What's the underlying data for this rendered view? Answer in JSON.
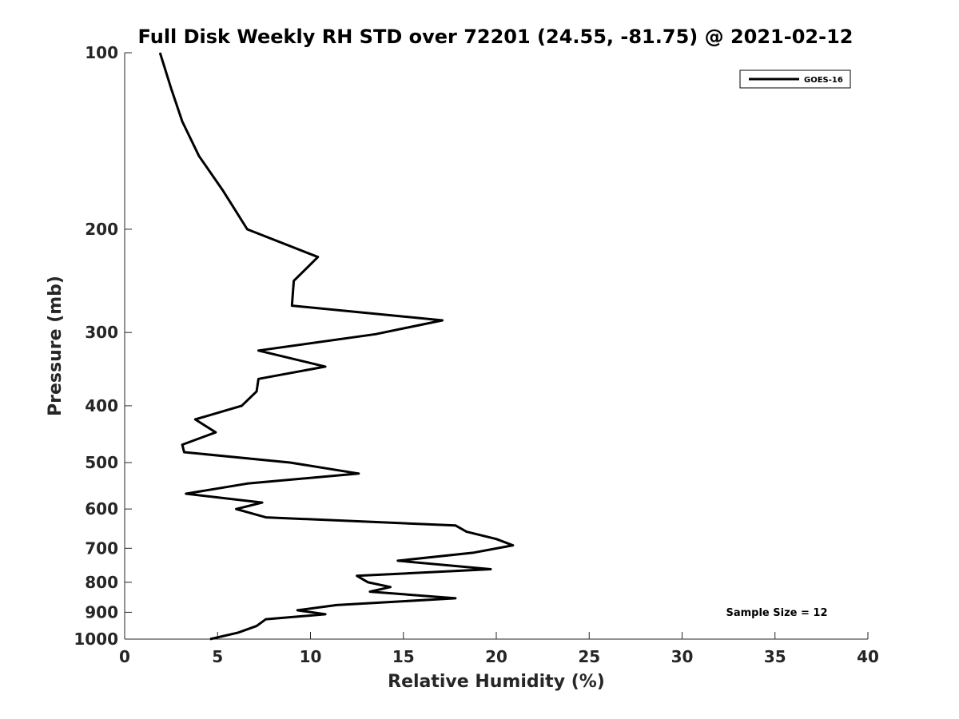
{
  "chart_data": {
    "type": "line",
    "title": "Full Disk Weekly RH STD over 72201 (24.55, -81.75) @ 2021-02-12",
    "xlabel": "Relative Humidity (%)",
    "ylabel": "Pressure (mb)",
    "xlim": [
      0,
      40
    ],
    "ylim": [
      100,
      1000
    ],
    "yscale": "log",
    "y_reversed": true,
    "x_ticks": [
      "0",
      "5",
      "10",
      "15",
      "20",
      "25",
      "30",
      "35",
      "40"
    ],
    "y_ticks": [
      "100",
      "200",
      "300",
      "400",
      "500",
      "600",
      "700",
      "800",
      "900",
      "1000"
    ],
    "grid": false,
    "legend": {
      "position": "top-right",
      "entries": [
        "GOES-16"
      ]
    },
    "annotation": "Sample Size = 12",
    "series": [
      {
        "name": "GOES-16",
        "color": "#000000",
        "points": [
          [
            1.9,
            100
          ],
          [
            2.5,
            115
          ],
          [
            3.1,
            131
          ],
          [
            4.0,
            150
          ],
          [
            5.3,
            172
          ],
          [
            6.6,
            200
          ],
          [
            10.4,
            223
          ],
          [
            9.1,
            245
          ],
          [
            9.0,
            270
          ],
          [
            17.1,
            286
          ],
          [
            13.5,
            302
          ],
          [
            7.2,
            322
          ],
          [
            10.8,
            343
          ],
          [
            7.2,
            360
          ],
          [
            7.1,
            378
          ],
          [
            6.3,
            400
          ],
          [
            3.8,
            422
          ],
          [
            4.9,
            444
          ],
          [
            3.1,
            466
          ],
          [
            3.2,
            480
          ],
          [
            8.9,
            500
          ],
          [
            12.6,
            522
          ],
          [
            6.6,
            543
          ],
          [
            3.3,
            565
          ],
          [
            7.4,
            585
          ],
          [
            6.0,
            600
          ],
          [
            7.6,
            620
          ],
          [
            17.8,
            640
          ],
          [
            18.4,
            656
          ],
          [
            20.0,
            675
          ],
          [
            20.9,
            692
          ],
          [
            18.8,
            712
          ],
          [
            14.7,
            735
          ],
          [
            19.7,
            760
          ],
          [
            12.5,
            780
          ],
          [
            13.1,
            800
          ],
          [
            14.3,
            815
          ],
          [
            13.2,
            830
          ],
          [
            17.8,
            852
          ],
          [
            11.4,
            875
          ],
          [
            9.3,
            893
          ],
          [
            10.8,
            907
          ],
          [
            7.6,
            925
          ],
          [
            7.1,
            950
          ],
          [
            6.1,
            975
          ],
          [
            4.6,
            1000
          ]
        ]
      }
    ]
  }
}
